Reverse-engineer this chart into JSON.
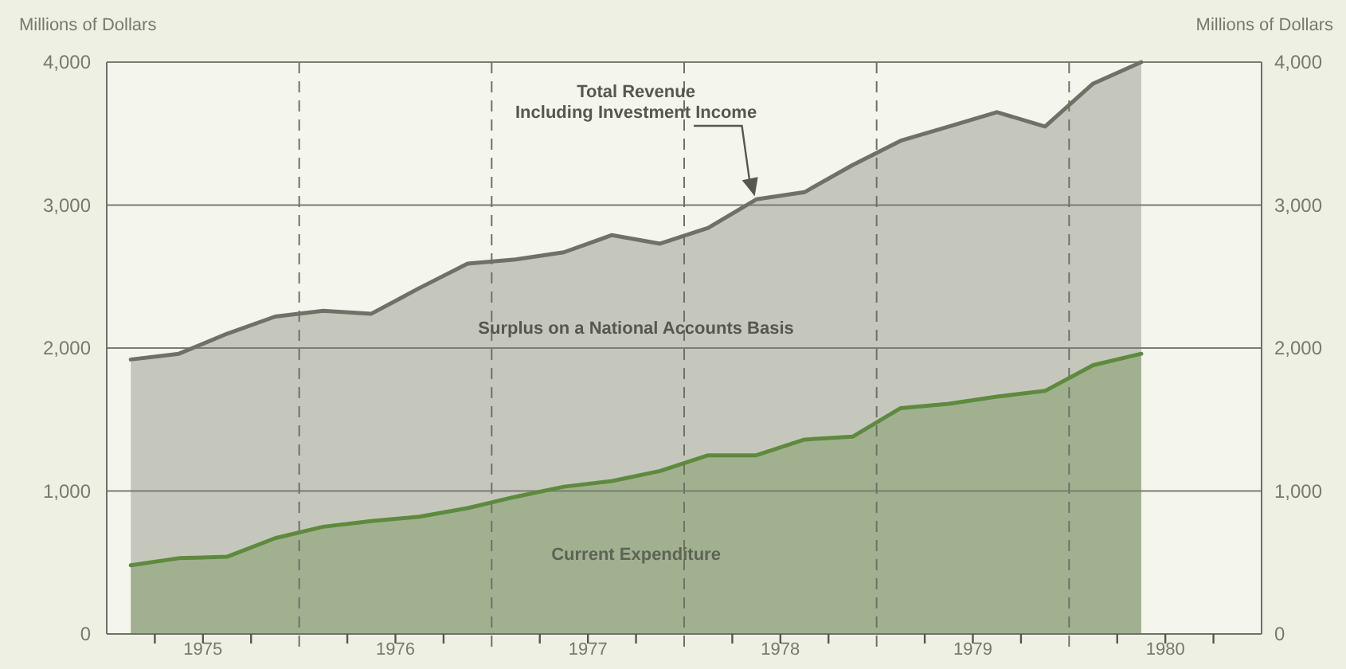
{
  "chart_data": {
    "type": "area",
    "ylabel": "Millions of Dollars",
    "y2label": "Millions of Dollars",
    "x": [
      1975.125,
      1975.375,
      1975.625,
      1975.875,
      1976.125,
      1976.375,
      1976.625,
      1976.875,
      1977.125,
      1977.375,
      1977.625,
      1977.875,
      1978.125,
      1978.375,
      1978.625,
      1978.875,
      1979.125,
      1979.375,
      1979.625,
      1979.875,
      1980.125,
      1980.375
    ],
    "xlim": [
      1975,
      1981
    ],
    "xticks": [
      {
        "value": 1975.25,
        "label": null
      },
      {
        "value": 1975.5,
        "label": "1975"
      },
      {
        "value": 1975.75,
        "label": null
      },
      {
        "value": 1976.25,
        "label": null
      },
      {
        "value": 1976.5,
        "label": "1976"
      },
      {
        "value": 1976.75,
        "label": null
      },
      {
        "value": 1977.25,
        "label": null
      },
      {
        "value": 1977.5,
        "label": "1977"
      },
      {
        "value": 1977.75,
        "label": null
      },
      {
        "value": 1978.25,
        "label": null
      },
      {
        "value": 1978.5,
        "label": "1978"
      },
      {
        "value": 1978.75,
        "label": null
      },
      {
        "value": 1979.25,
        "label": null
      },
      {
        "value": 1979.5,
        "label": "1979"
      },
      {
        "value": 1979.75,
        "label": null
      },
      {
        "value": 1980.25,
        "label": null
      },
      {
        "value": 1980.5,
        "label": "1980"
      },
      {
        "value": 1980.75,
        "label": null
      }
    ],
    "ylim": [
      0,
      4000
    ],
    "yticks": [
      {
        "value": 0,
        "label": "0"
      },
      {
        "value": 1000,
        "label": "1,000"
      },
      {
        "value": 2000,
        "label": "2,000"
      },
      {
        "value": 3000,
        "label": "3,000"
      },
      {
        "value": 4000,
        "label": "4,000"
      }
    ],
    "y2lim": [
      0,
      4000
    ],
    "y2ticks": [
      {
        "value": 0,
        "label": "0"
      },
      {
        "value": 1000,
        "label": "1,000"
      },
      {
        "value": 2000,
        "label": "2,000"
      },
      {
        "value": 3000,
        "label": "3,000"
      },
      {
        "value": 4000,
        "label": "4,000"
      }
    ],
    "grid": "y",
    "ref_lines": [
      {
        "axis": "x",
        "value": 1976,
        "line_style": "dashed"
      },
      {
        "axis": "x",
        "value": 1977,
        "line_style": "dashed"
      },
      {
        "axis": "x",
        "value": 1978,
        "line_style": "dashed"
      },
      {
        "axis": "x",
        "value": 1979,
        "line_style": "dashed"
      },
      {
        "axis": "x",
        "value": 1980,
        "line_style": "dashed"
      }
    ],
    "series": [
      {
        "name": "Total Revenue Including Investment Income",
        "color": "#6e7265",
        "values": [
          1920,
          1960,
          2100,
          2220,
          2260,
          2240,
          2420,
          2590,
          2620,
          2670,
          2790,
          2730,
          2840,
          3040,
          3090,
          3280,
          3450,
          3550,
          3650,
          3550,
          3850,
          4000
        ]
      },
      {
        "name": "Current Expenditure",
        "color": "#5e8a3e",
        "values": [
          480,
          530,
          540,
          670,
          750,
          790,
          820,
          880,
          960,
          1030,
          1070,
          1140,
          1250,
          1250,
          1360,
          1380,
          1580,
          1610,
          1660,
          1700,
          1880,
          1960
        ]
      }
    ],
    "annotations": [
      "Surplus on a National Accounts Basis"
    ]
  }
}
